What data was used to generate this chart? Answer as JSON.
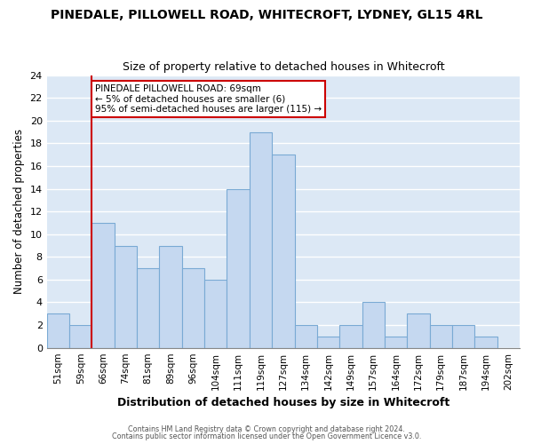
{
  "title": "PINEDALE, PILLOWELL ROAD, WHITECROFT, LYDNEY, GL15 4RL",
  "subtitle": "Size of property relative to detached houses in Whitecroft",
  "xlabel": "Distribution of detached houses by size in Whitecroft",
  "ylabel": "Number of detached properties",
  "bin_labels": [
    "51sqm",
    "59sqm",
    "66sqm",
    "74sqm",
    "81sqm",
    "89sqm",
    "96sqm",
    "104sqm",
    "111sqm",
    "119sqm",
    "127sqm",
    "134sqm",
    "142sqm",
    "149sqm",
    "157sqm",
    "164sqm",
    "172sqm",
    "179sqm",
    "187sqm",
    "194sqm",
    "202sqm"
  ],
  "bar_values": [
    3,
    2,
    11,
    9,
    7,
    9,
    7,
    6,
    14,
    19,
    17,
    2,
    1,
    2,
    4,
    1,
    3,
    2,
    2,
    1,
    0
  ],
  "bar_color": "#c5d8f0",
  "bar_edge_color": "#7aaad4",
  "vline_x_index": 2,
  "vline_color": "#cc0000",
  "ylim": [
    0,
    24
  ],
  "yticks": [
    0,
    2,
    4,
    6,
    8,
    10,
    12,
    14,
    16,
    18,
    20,
    22,
    24
  ],
  "annotation_text": "PINEDALE PILLOWELL ROAD: 69sqm\n← 5% of detached houses are smaller (6)\n95% of semi-detached houses are larger (115) →",
  "annotation_box_color": "#ffffff",
  "annotation_box_edge": "#cc0000",
  "footer1": "Contains HM Land Registry data © Crown copyright and database right 2024.",
  "footer2": "Contains public sector information licensed under the Open Government Licence v3.0.",
  "page_background": "#ffffff",
  "plot_background": "#dce8f5",
  "grid_color": "#ffffff"
}
